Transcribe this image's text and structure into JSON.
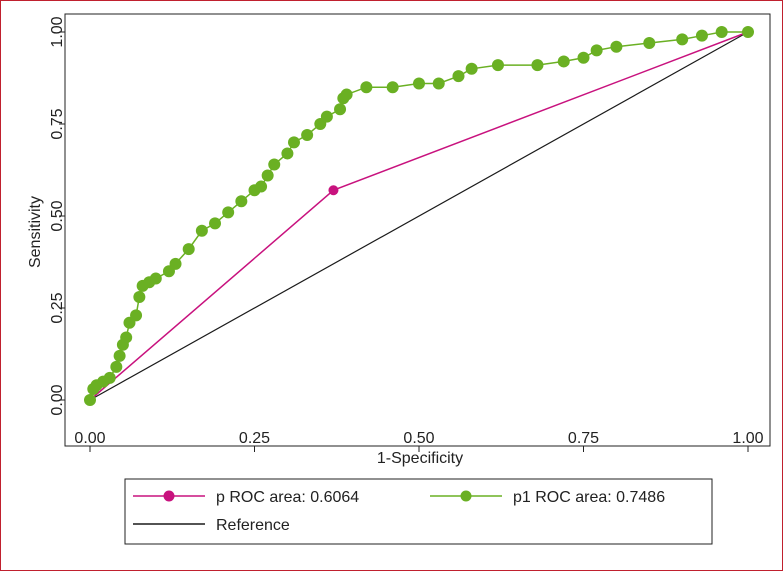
{
  "chart_data": {
    "type": "line",
    "xlabel": "1-Specificity",
    "ylabel": "Sensitivity",
    "xlim": [
      0,
      1
    ],
    "ylim": [
      0,
      1
    ],
    "x_ticks": [
      "0.00",
      "0.25",
      "0.50",
      "0.75",
      "1.00"
    ],
    "y_ticks": [
      "0.00",
      "0.25",
      "0.50",
      "0.75",
      "1.00"
    ],
    "grid": false,
    "legend_position": "bottom",
    "series": [
      {
        "name": "p ROC area: 0.6064",
        "color": "#c8127e",
        "marker": "circle",
        "points": [
          [
            0,
            0
          ],
          [
            0.37,
            0.57
          ],
          [
            1,
            1
          ]
        ]
      },
      {
        "name": "p1 ROC area: 0.7486",
        "color": "#6ab023",
        "marker": "circle",
        "points": [
          [
            0,
            0
          ],
          [
            0.005,
            0.03
          ],
          [
            0.01,
            0.04
          ],
          [
            0.02,
            0.05
          ],
          [
            0.03,
            0.06
          ],
          [
            0.04,
            0.09
          ],
          [
            0.045,
            0.12
          ],
          [
            0.05,
            0.15
          ],
          [
            0.055,
            0.17
          ],
          [
            0.06,
            0.21
          ],
          [
            0.07,
            0.23
          ],
          [
            0.075,
            0.28
          ],
          [
            0.08,
            0.31
          ],
          [
            0.09,
            0.32
          ],
          [
            0.1,
            0.33
          ],
          [
            0.12,
            0.35
          ],
          [
            0.13,
            0.37
          ],
          [
            0.15,
            0.41
          ],
          [
            0.17,
            0.46
          ],
          [
            0.19,
            0.48
          ],
          [
            0.21,
            0.51
          ],
          [
            0.23,
            0.54
          ],
          [
            0.25,
            0.57
          ],
          [
            0.26,
            0.58
          ],
          [
            0.27,
            0.61
          ],
          [
            0.28,
            0.64
          ],
          [
            0.3,
            0.67
          ],
          [
            0.31,
            0.7
          ],
          [
            0.33,
            0.72
          ],
          [
            0.35,
            0.75
          ],
          [
            0.36,
            0.77
          ],
          [
            0.38,
            0.79
          ],
          [
            0.385,
            0.82
          ],
          [
            0.39,
            0.83
          ],
          [
            0.42,
            0.85
          ],
          [
            0.46,
            0.85
          ],
          [
            0.5,
            0.86
          ],
          [
            0.53,
            0.86
          ],
          [
            0.56,
            0.88
          ],
          [
            0.58,
            0.9
          ],
          [
            0.62,
            0.91
          ],
          [
            0.68,
            0.91
          ],
          [
            0.72,
            0.92
          ],
          [
            0.75,
            0.93
          ],
          [
            0.77,
            0.95
          ],
          [
            0.8,
            0.96
          ],
          [
            0.85,
            0.97
          ],
          [
            0.9,
            0.98
          ],
          [
            0.93,
            0.99
          ],
          [
            0.96,
            1
          ],
          [
            1,
            1
          ]
        ]
      },
      {
        "name": "Reference",
        "color": "#1a1a1a",
        "marker": "none",
        "points": [
          [
            0,
            0
          ],
          [
            1,
            1
          ]
        ]
      }
    ]
  }
}
